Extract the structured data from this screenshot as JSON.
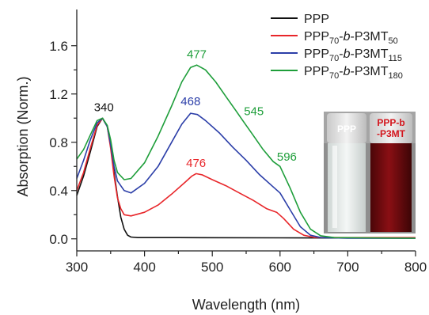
{
  "chart_data": {
    "type": "line",
    "xlabel": "Wavelength (nm)",
    "ylabel": "Absorption (Norm.)",
    "xlim": [
      300,
      800
    ],
    "ylim": [
      -0.1,
      1.9
    ],
    "xticks": [
      "300",
      "400",
      "500",
      "600",
      "700",
      "800"
    ],
    "yticks": [
      "0.0",
      "0.4",
      "0.8",
      "1.2",
      "1.6"
    ],
    "grid": false,
    "legend_position": "top-right",
    "series": [
      {
        "name": "PPP",
        "color": "#111111",
        "points": [
          [
            300,
            0.36
          ],
          [
            310,
            0.52
          ],
          [
            320,
            0.72
          ],
          [
            330,
            0.93
          ],
          [
            338,
            1.0
          ],
          [
            345,
            0.93
          ],
          [
            350,
            0.78
          ],
          [
            355,
            0.55
          ],
          [
            360,
            0.35
          ],
          [
            365,
            0.18
          ],
          [
            370,
            0.08
          ],
          [
            375,
            0.03
          ],
          [
            380,
            0.015
          ],
          [
            390,
            0.01
          ],
          [
            450,
            0.01
          ],
          [
            600,
            0.008
          ],
          [
            800,
            0.005
          ]
        ]
      },
      {
        "name_parts": [
          [
            "PPP",
            ""
          ],
          [
            "70",
            "sub"
          ],
          [
            "-",
            ""
          ],
          [
            "b",
            "i"
          ],
          [
            "-P3MT",
            ""
          ],
          [
            "50",
            "sub"
          ]
        ],
        "color": "#e8262a",
        "points": [
          [
            300,
            0.4
          ],
          [
            310,
            0.55
          ],
          [
            320,
            0.75
          ],
          [
            330,
            0.94
          ],
          [
            338,
            1.0
          ],
          [
            345,
            0.93
          ],
          [
            350,
            0.75
          ],
          [
            355,
            0.52
          ],
          [
            360,
            0.34
          ],
          [
            365,
            0.25
          ],
          [
            370,
            0.2
          ],
          [
            380,
            0.19
          ],
          [
            400,
            0.22
          ],
          [
            420,
            0.28
          ],
          [
            440,
            0.37
          ],
          [
            460,
            0.47
          ],
          [
            470,
            0.52
          ],
          [
            476,
            0.54
          ],
          [
            485,
            0.53
          ],
          [
            500,
            0.49
          ],
          [
            520,
            0.44
          ],
          [
            540,
            0.38
          ],
          [
            560,
            0.32
          ],
          [
            580,
            0.25
          ],
          [
            595,
            0.22
          ],
          [
            605,
            0.17
          ],
          [
            620,
            0.08
          ],
          [
            635,
            0.03
          ],
          [
            650,
            0.012
          ],
          [
            700,
            0.01
          ],
          [
            800,
            0.01
          ]
        ]
      },
      {
        "name_parts": [
          [
            "PPP",
            ""
          ],
          [
            "70",
            "sub"
          ],
          [
            "-",
            ""
          ],
          [
            "b",
            "i"
          ],
          [
            "-P3MT",
            ""
          ],
          [
            "115",
            "sub"
          ]
        ],
        "color": "#2b3ea8",
        "points": [
          [
            300,
            0.5
          ],
          [
            310,
            0.65
          ],
          [
            320,
            0.82
          ],
          [
            330,
            0.96
          ],
          [
            338,
            1.0
          ],
          [
            345,
            0.93
          ],
          [
            350,
            0.78
          ],
          [
            355,
            0.6
          ],
          [
            360,
            0.48
          ],
          [
            370,
            0.4
          ],
          [
            380,
            0.38
          ],
          [
            400,
            0.46
          ],
          [
            420,
            0.6
          ],
          [
            440,
            0.8
          ],
          [
            455,
            0.95
          ],
          [
            468,
            1.04
          ],
          [
            478,
            1.03
          ],
          [
            490,
            0.98
          ],
          [
            510,
            0.88
          ],
          [
            530,
            0.76
          ],
          [
            550,
            0.65
          ],
          [
            570,
            0.53
          ],
          [
            590,
            0.43
          ],
          [
            600,
            0.38
          ],
          [
            615,
            0.24
          ],
          [
            630,
            0.1
          ],
          [
            645,
            0.03
          ],
          [
            660,
            0.01
          ],
          [
            700,
            0.005
          ],
          [
            800,
            0.005
          ]
        ]
      },
      {
        "name_parts": [
          [
            "PPP",
            ""
          ],
          [
            "70",
            "sub"
          ],
          [
            "-",
            ""
          ],
          [
            "b",
            "i"
          ],
          [
            "-P3MT",
            ""
          ],
          [
            "180",
            "sub"
          ]
        ],
        "color": "#1e9e3a",
        "points": [
          [
            300,
            0.66
          ],
          [
            310,
            0.74
          ],
          [
            320,
            0.86
          ],
          [
            330,
            0.98
          ],
          [
            338,
            1.0
          ],
          [
            345,
            0.94
          ],
          [
            350,
            0.82
          ],
          [
            355,
            0.65
          ],
          [
            360,
            0.55
          ],
          [
            370,
            0.49
          ],
          [
            380,
            0.5
          ],
          [
            400,
            0.63
          ],
          [
            420,
            0.85
          ],
          [
            440,
            1.1
          ],
          [
            455,
            1.3
          ],
          [
            468,
            1.42
          ],
          [
            477,
            1.44
          ],
          [
            490,
            1.4
          ],
          [
            505,
            1.3
          ],
          [
            520,
            1.18
          ],
          [
            535,
            1.06
          ],
          [
            545,
            0.98
          ],
          [
            560,
            0.86
          ],
          [
            575,
            0.74
          ],
          [
            590,
            0.64
          ],
          [
            600,
            0.6
          ],
          [
            615,
            0.42
          ],
          [
            630,
            0.22
          ],
          [
            645,
            0.08
          ],
          [
            660,
            0.025
          ],
          [
            680,
            0.01
          ],
          [
            800,
            0.005
          ]
        ]
      }
    ],
    "annotations": [
      {
        "text": "340",
        "x": 340,
        "y": 1.03,
        "color": "#111111"
      },
      {
        "text": "476",
        "x": 476,
        "y": 0.57,
        "color": "#e8262a"
      },
      {
        "text": "468",
        "x": 468,
        "y": 1.08,
        "color": "#2b3ea8"
      },
      {
        "text": "477",
        "x": 477,
        "y": 1.47,
        "color": "#1e9e3a"
      },
      {
        "text": "545",
        "x": 545,
        "y": 1.0,
        "color": "#1e9e3a"
      },
      {
        "text": "596",
        "x": 596,
        "y": 0.62,
        "color": "#1e9e3a"
      }
    ],
    "inset": {
      "description": "photo of two vials",
      "left_label": "PPP",
      "right_label_lines": [
        "PPP-b",
        "-P3MT"
      ]
    }
  }
}
